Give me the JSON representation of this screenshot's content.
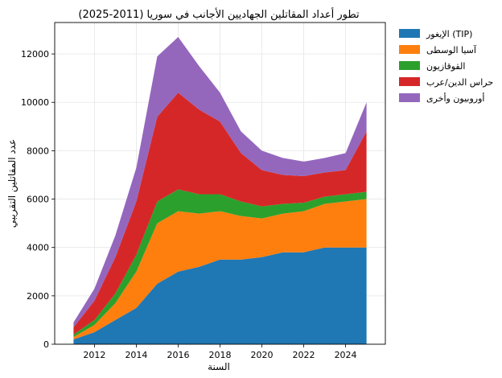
{
  "chart_data": {
    "type": "area",
    "stacked": true,
    "title": "تطور أعداد المقاتلين الجهاديين الأجانب في سوريا (2011-2025)",
    "xlabel": "السنة",
    "ylabel": "عدد المقاتلين التقريبي",
    "x": [
      2011,
      2012,
      2013,
      2014,
      2015,
      2016,
      2017,
      2018,
      2019,
      2020,
      2021,
      2022,
      2023,
      2024,
      2025
    ],
    "xlim": [
      2010.1,
      2025.9
    ],
    "ylim": [
      0,
      13300
    ],
    "xticks": [
      2012,
      2014,
      2016,
      2018,
      2020,
      2022,
      2024
    ],
    "yticks": [
      0,
      2000,
      4000,
      6000,
      8000,
      10000,
      12000
    ],
    "grid": true,
    "legend_position": "outside-right",
    "series": [
      {
        "name": "الإيغور (TIP)",
        "color": "#1f77b4",
        "values": [
          200,
          500,
          1000,
          1500,
          2500,
          3000,
          3200,
          3500,
          3500,
          3600,
          3800,
          3800,
          4000,
          4000,
          4000
        ]
      },
      {
        "name": "آسيا الوسطى",
        "color": "#ff7f0e",
        "values": [
          100,
          300,
          700,
          1500,
          2500,
          2500,
          2200,
          2000,
          1800,
          1600,
          1600,
          1700,
          1800,
          1900,
          2000
        ]
      },
      {
        "name": "القوقازيون",
        "color": "#2ca02c",
        "values": [
          100,
          200,
          400,
          700,
          900,
          900,
          800,
          700,
          600,
          500,
          400,
          350,
          300,
          300,
          300
        ]
      },
      {
        "name": "حراس الدين/عرب",
        "color": "#d62728",
        "values": [
          300,
          800,
          1500,
          2200,
          3500,
          4000,
          3500,
          3000,
          2000,
          1500,
          1200,
          1100,
          1000,
          1000,
          2500
        ]
      },
      {
        "name": "أوروبيون وأخرى",
        "color": "#9467bd",
        "values": [
          200,
          500,
          900,
          1400,
          2500,
          2300,
          1800,
          1200,
          900,
          800,
          700,
          600,
          600,
          700,
          1200
        ]
      }
    ]
  }
}
